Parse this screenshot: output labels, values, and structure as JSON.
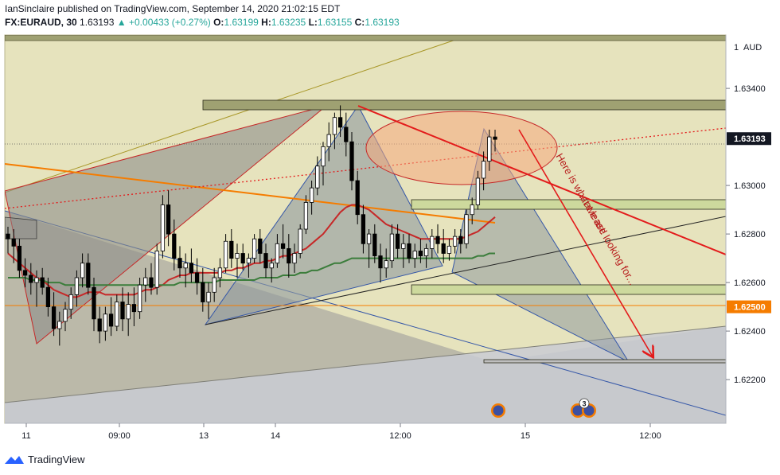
{
  "header": {
    "published_line": "IanSinclaire published on TradingView.com, September 14, 2020 21:02:15 EDT",
    "symbol": "FX:EURAUD, 30",
    "last": "1.63193",
    "change": "+0.00433 (+0.27%)",
    "o_label": "O:",
    "o": "1.63199",
    "h_label": "H:",
    "h": "1.63235",
    "l_label": "L:",
    "l": "1.63155",
    "c_label": "C:",
    "c": "1.63193"
  },
  "chart_data": {
    "type": "candlestick",
    "currency_label": "AUD",
    "price_axis_top_label": "1",
    "y_range": [
      1.6202,
      1.6362
    ],
    "y_ticks": [
      "1.63400",
      "1.63000",
      "1.62800",
      "1.62600",
      "1.62400",
      "1.62200"
    ],
    "y_tick_values": [
      1.634,
      1.63,
      1.628,
      1.626,
      1.624,
      1.622
    ],
    "x_tick_labels": [
      "11",
      "09:00",
      "13",
      "14",
      "12:00",
      "15",
      "12:00"
    ],
    "price_badges": [
      {
        "label": "1.63193",
        "value": 1.63193,
        "color": "#131722"
      },
      {
        "label": "1.62500",
        "value": 1.625,
        "color": "#f57c00"
      }
    ],
    "annotation": "Here is what we are looking for...\n... at least!",
    "event_badge_count": "3",
    "series": [
      {
        "name": "candles",
        "ohlc": [
          [
            1.628,
            1.6283,
            1.6272,
            1.6278
          ],
          [
            1.6278,
            1.6282,
            1.6268,
            1.6275
          ],
          [
            1.6275,
            1.6278,
            1.6262,
            1.6265
          ],
          [
            1.6265,
            1.627,
            1.6258,
            1.6263
          ],
          [
            1.6263,
            1.6268,
            1.6255,
            1.626
          ],
          [
            1.626,
            1.6265,
            1.625,
            1.6262
          ],
          [
            1.6262,
            1.6266,
            1.6255,
            1.6258
          ],
          [
            1.6258,
            1.6262,
            1.6246,
            1.625
          ],
          [
            1.625,
            1.6256,
            1.6238,
            1.6241
          ],
          [
            1.6241,
            1.6248,
            1.6234,
            1.6244
          ],
          [
            1.6244,
            1.6252,
            1.624,
            1.6249
          ],
          [
            1.6249,
            1.6258,
            1.6245,
            1.6255
          ],
          [
            1.6255,
            1.6265,
            1.625,
            1.6262
          ],
          [
            1.6262,
            1.6272,
            1.6258,
            1.6268
          ],
          [
            1.6268,
            1.6272,
            1.6255,
            1.6258
          ],
          [
            1.6258,
            1.6262,
            1.624,
            1.6245
          ],
          [
            1.6245,
            1.625,
            1.6235,
            1.624
          ],
          [
            1.624,
            1.625,
            1.6236,
            1.6247
          ],
          [
            1.6247,
            1.6254,
            1.6238,
            1.6242
          ],
          [
            1.6242,
            1.6255,
            1.624,
            1.6252
          ],
          [
            1.6252,
            1.6258,
            1.624,
            1.6245
          ],
          [
            1.6245,
            1.6256,
            1.6238,
            1.6251
          ],
          [
            1.6251,
            1.6258,
            1.6242,
            1.6248
          ],
          [
            1.6248,
            1.6262,
            1.6245,
            1.6259
          ],
          [
            1.6259,
            1.6266,
            1.6252,
            1.6262
          ],
          [
            1.6262,
            1.6268,
            1.6255,
            1.6258
          ],
          [
            1.6258,
            1.6276,
            1.6255,
            1.6273
          ],
          [
            1.6273,
            1.6296,
            1.627,
            1.6292
          ],
          [
            1.6292,
            1.6298,
            1.6275,
            1.628
          ],
          [
            1.628,
            1.6286,
            1.6265,
            1.627
          ],
          [
            1.627,
            1.6275,
            1.6262,
            1.6266
          ],
          [
            1.6266,
            1.6272,
            1.6258,
            1.6268
          ],
          [
            1.6268,
            1.6274,
            1.626,
            1.6264
          ],
          [
            1.6264,
            1.627,
            1.6255,
            1.626
          ],
          [
            1.626,
            1.6266,
            1.6248,
            1.6252
          ],
          [
            1.6252,
            1.626,
            1.6245,
            1.6256
          ],
          [
            1.6256,
            1.6266,
            1.6252,
            1.6262
          ],
          [
            1.6262,
            1.627,
            1.6258,
            1.6266
          ],
          [
            1.6266,
            1.628,
            1.6264,
            1.6277
          ],
          [
            1.6277,
            1.6282,
            1.6266,
            1.627
          ],
          [
            1.627,
            1.6276,
            1.6262,
            1.6272
          ],
          [
            1.6272,
            1.6276,
            1.6265,
            1.6268
          ],
          [
            1.6268,
            1.6272,
            1.6262,
            1.627
          ],
          [
            1.627,
            1.628,
            1.6268,
            1.6278
          ],
          [
            1.6278,
            1.6282,
            1.6268,
            1.6272
          ],
          [
            1.6272,
            1.6276,
            1.6262,
            1.6266
          ],
          [
            1.6266,
            1.627,
            1.626,
            1.6268
          ],
          [
            1.6268,
            1.628,
            1.6266,
            1.6276
          ],
          [
            1.6276,
            1.6284,
            1.627,
            1.6274
          ],
          [
            1.6274,
            1.628,
            1.6262,
            1.6268
          ],
          [
            1.6268,
            1.6276,
            1.6264,
            1.6272
          ],
          [
            1.6272,
            1.6284,
            1.627,
            1.6282
          ],
          [
            1.6282,
            1.6296,
            1.628,
            1.6293
          ],
          [
            1.6293,
            1.6302,
            1.6288,
            1.6299
          ],
          [
            1.6299,
            1.6312,
            1.6296,
            1.6308
          ],
          [
            1.6308,
            1.6318,
            1.63,
            1.6316
          ],
          [
            1.6316,
            1.6326,
            1.631,
            1.6321
          ],
          [
            1.6321,
            1.633,
            1.6315,
            1.6328
          ],
          [
            1.6328,
            1.6333,
            1.632,
            1.6324
          ],
          [
            1.6324,
            1.633,
            1.6312,
            1.6318
          ],
          [
            1.6318,
            1.6322,
            1.6298,
            1.6302
          ],
          [
            1.6302,
            1.6306,
            1.6284,
            1.6288
          ],
          [
            1.6288,
            1.6292,
            1.6272,
            1.6276
          ],
          [
            1.6276,
            1.6282,
            1.6266,
            1.628
          ],
          [
            1.628,
            1.6284,
            1.6268,
            1.6271
          ],
          [
            1.6271,
            1.6276,
            1.626,
            1.6266
          ],
          [
            1.6266,
            1.6274,
            1.6262,
            1.6269
          ],
          [
            1.6269,
            1.6284,
            1.6266,
            1.628
          ],
          [
            1.628,
            1.6284,
            1.627,
            1.6274
          ],
          [
            1.6274,
            1.628,
            1.6266,
            1.6276
          ],
          [
            1.6276,
            1.628,
            1.6268,
            1.627
          ],
          [
            1.627,
            1.6276,
            1.6266,
            1.6273
          ],
          [
            1.6273,
            1.6278,
            1.6268,
            1.6271
          ],
          [
            1.6271,
            1.6276,
            1.6266,
            1.6274
          ],
          [
            1.6274,
            1.6282,
            1.627,
            1.6279
          ],
          [
            1.6279,
            1.6284,
            1.6272,
            1.6276
          ],
          [
            1.6276,
            1.6282,
            1.6268,
            1.6272
          ],
          [
            1.6272,
            1.6278,
            1.6269,
            1.6275
          ],
          [
            1.6275,
            1.6282,
            1.6272,
            1.6279
          ],
          [
            1.6279,
            1.6282,
            1.6272,
            1.6276
          ],
          [
            1.6276,
            1.629,
            1.6274,
            1.6288
          ],
          [
            1.6288,
            1.6295,
            1.6284,
            1.6292
          ],
          [
            1.6292,
            1.6306,
            1.629,
            1.6303
          ],
          [
            1.6303,
            1.6314,
            1.6298,
            1.631
          ],
          [
            1.631,
            1.6323,
            1.6306,
            1.632
          ],
          [
            1.632,
            1.6323,
            1.6314,
            1.6319
          ]
        ]
      },
      {
        "name": "ma-red",
        "values": [
          1.6272,
          1.627,
          1.6268,
          1.6266,
          1.6264,
          1.6262,
          1.6261,
          1.6259,
          1.6257,
          1.6256,
          1.6255,
          1.6254,
          1.6254,
          1.6255,
          1.6256,
          1.6256,
          1.6256,
          1.6255,
          1.6255,
          1.6255,
          1.6255,
          1.6255,
          1.6255,
          1.6256,
          1.6257,
          1.6257,
          1.6258,
          1.6259,
          1.6261,
          1.6262,
          1.6263,
          1.6263,
          1.6264,
          1.6264,
          1.6264,
          1.6264,
          1.6264,
          1.6264,
          1.6265,
          1.6265,
          1.6266,
          1.6266,
          1.6267,
          1.6268,
          1.6268,
          1.6269,
          1.6269,
          1.627,
          1.6271,
          1.6271,
          1.6272,
          1.6273,
          1.6274,
          1.6276,
          1.6278,
          1.628,
          1.6283,
          1.6286,
          1.6289,
          1.6291,
          1.6292,
          1.6292,
          1.6291,
          1.629,
          1.6288,
          1.6286,
          1.6284,
          1.6283,
          1.6282,
          1.6281,
          1.628,
          1.6279,
          1.6278,
          1.6278,
          1.6278,
          1.6278,
          1.6278,
          1.6278,
          1.6278,
          1.6278,
          1.6279,
          1.628,
          1.6281,
          1.6283,
          1.6285,
          1.6287
        ]
      },
      {
        "name": "ma-green",
        "values": [
          1.6262,
          1.6262,
          1.6262,
          1.6262,
          1.6261,
          1.6261,
          1.6261,
          1.626,
          1.626,
          1.626,
          1.6259,
          1.6259,
          1.6259,
          1.6259,
          1.6259,
          1.6259,
          1.6259,
          1.6259,
          1.6259,
          1.6259,
          1.6259,
          1.6259,
          1.6259,
          1.6259,
          1.6259,
          1.6259,
          1.6259,
          1.6259,
          1.6259,
          1.6259,
          1.626,
          1.626,
          1.626,
          1.626,
          1.626,
          1.626,
          1.626,
          1.6261,
          1.6261,
          1.6261,
          1.6261,
          1.6261,
          1.6261,
          1.6261,
          1.6262,
          1.6262,
          1.6262,
          1.6262,
          1.6263,
          1.6263,
          1.6263,
          1.6264,
          1.6264,
          1.6265,
          1.6265,
          1.6266,
          1.6267,
          1.6268,
          1.6268,
          1.6269,
          1.627,
          1.627,
          1.627,
          1.627,
          1.627,
          1.627,
          1.627,
          1.627,
          1.627,
          1.627,
          1.627,
          1.627,
          1.627,
          1.627,
          1.627,
          1.627,
          1.627,
          1.627,
          1.627,
          1.627,
          1.627,
          1.627,
          1.6271,
          1.6271,
          1.6272,
          1.6272
        ]
      }
    ]
  },
  "footer": {
    "brand": "TradingView"
  },
  "colors": {
    "bull": "#ffffff",
    "bear": "#000000",
    "accent": "#26a69a",
    "arrow": "#e31b1b",
    "orange": "#f57c00"
  }
}
